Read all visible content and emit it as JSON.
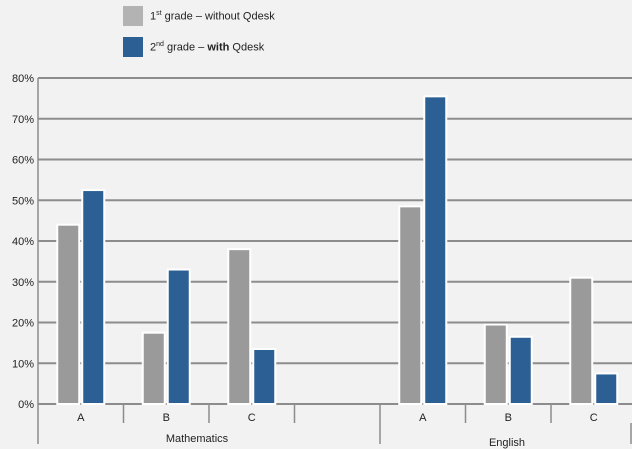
{
  "legend": [
    {
      "num": "1",
      "sup": "st",
      "pre": " grade – without ",
      "bold": "",
      "post": "Qdesk",
      "color": "#b3b3b3"
    },
    {
      "num": "2",
      "sup": "nd",
      "pre": " grade – ",
      "bold": "with",
      "post": " Qdesk",
      "color": "#2c5f94"
    }
  ],
  "chart_data": {
    "type": "bar",
    "ylim": [
      0,
      80
    ],
    "yticks": [
      "0%",
      "10%",
      "20%",
      "30%",
      "40%",
      "50%",
      "60%",
      "70%",
      "80%"
    ],
    "grid": true,
    "legend_placement": "top-left",
    "groups": [
      {
        "label": "Mathematics",
        "categories": [
          "A",
          "B",
          "C",
          ""
        ]
      },
      {
        "label": "English",
        "categories": [
          "A",
          "B",
          "C"
        ]
      }
    ],
    "categories": [
      "A",
      "B",
      "C",
      "",
      "A",
      "B",
      "C"
    ],
    "series": [
      {
        "color": "#9a9a9a",
        "values": [
          44,
          17.5,
          38,
          null,
          48.5,
          19.5,
          31
        ]
      },
      {
        "color": "#2c5f94",
        "values": [
          52.5,
          33,
          13.5,
          null,
          75.5,
          16.5,
          7.5
        ]
      }
    ]
  }
}
